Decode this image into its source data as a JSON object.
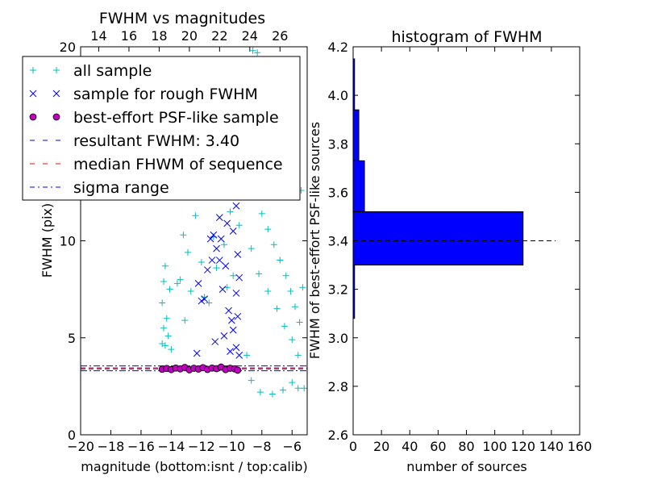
{
  "chart_data": [
    {
      "type": "scatter",
      "title": "FWHM vs magnitudes",
      "xlabel": "magnitude (bottom:isnt / top:calib)",
      "ylabel": "FWHM (pix)",
      "xlim": [
        -20,
        -5
      ],
      "ylim": [
        0,
        20
      ],
      "xticks": [
        "−20",
        "−18",
        "−16",
        "−14",
        "−12",
        "−10",
        "−8",
        "−6"
      ],
      "xtick_values": [
        -20,
        -18,
        -16,
        -14,
        -12,
        -10,
        -8,
        -6
      ],
      "yticks": [
        "0",
        "5",
        "10",
        "20"
      ],
      "ytick_values": [
        0,
        5,
        10,
        20
      ],
      "top_xticks": [
        "14",
        "16",
        "18",
        "20",
        "22",
        "24",
        "26"
      ],
      "top_xtick_values": [
        -18.8,
        -16.8,
        -14.8,
        -12.8,
        -10.8,
        -8.8,
        -6.8
      ],
      "legend": {
        "placement": "upper-left",
        "entries": [
          {
            "label": "all sample",
            "marker": "+",
            "color": "#00bfbf"
          },
          {
            "label": "sample for rough FWHM",
            "marker": "x",
            "color": "#0000ff"
          },
          {
            "label": "best-effort PSF-like sample",
            "marker": "o",
            "color": "#bf00bf"
          },
          {
            "label": "resultant FWHM: 3.40",
            "style": "dashed",
            "color": "#0000ff"
          },
          {
            "label": "median FHWM of sequence",
            "style": "dashed",
            "color": "#ff0000"
          },
          {
            "label": "sigma range",
            "style": "dashdot",
            "color": "#0000ff"
          }
        ]
      },
      "series": [
        {
          "name": "all sample",
          "color": "#00bfbf",
          "points": [
            [
              -14.4,
              8.7
            ],
            [
              -14.5,
              7.9
            ],
            [
              -14.1,
              7.5
            ],
            [
              -14.6,
              6.8
            ],
            [
              -14.3,
              6.0
            ],
            [
              -14.5,
              5.5
            ],
            [
              -14.2,
              5.1
            ],
            [
              -14.6,
              4.7
            ],
            [
              -14.4,
              4.6
            ],
            [
              -14.0,
              4.4
            ],
            [
              -13.6,
              7.8
            ],
            [
              -13.2,
              10.3
            ],
            [
              -13.4,
              8.0
            ],
            [
              -12.9,
              9.4
            ],
            [
              -12.7,
              7.4
            ],
            [
              -13.1,
              5.9
            ],
            [
              -12.4,
              11.3
            ],
            [
              -12.0,
              8.9
            ],
            [
              -11.8,
              7.1
            ],
            [
              -11.5,
              6.8
            ],
            [
              -11.2,
              10.2
            ],
            [
              -11.0,
              8.6
            ],
            [
              -10.7,
              12.4
            ],
            [
              -10.5,
              9.8
            ],
            [
              -10.3,
              7.6
            ],
            [
              -10.1,
              11.5
            ],
            [
              -9.9,
              8.2
            ],
            [
              -9.7,
              13.2
            ],
            [
              -9.5,
              10.8
            ],
            [
              -9.2,
              14.2
            ],
            [
              -8.9,
              15.6
            ],
            [
              -8.6,
              19.8
            ],
            [
              -8.3,
              19.7
            ],
            [
              -7.9,
              19.0
            ],
            [
              -7.4,
              18.6
            ],
            [
              -6.8,
              16.2
            ],
            [
              -6.2,
              15.5
            ],
            [
              -5.7,
              14.8
            ],
            [
              -5.4,
              12.6
            ],
            [
              -5.3,
              7.6
            ],
            [
              -5.2,
              2.4
            ],
            [
              -5.6,
              2.4
            ],
            [
              -6.0,
              2.7
            ],
            [
              -6.6,
              2.3
            ],
            [
              -7.3,
              2.1
            ],
            [
              -8.1,
              2.2
            ],
            [
              -8.7,
              2.8
            ],
            [
              -9.0,
              4.1
            ],
            [
              -8.4,
              12.5
            ],
            [
              -8.0,
              11.4
            ],
            [
              -7.6,
              10.6
            ],
            [
              -7.2,
              9.8
            ],
            [
              -6.8,
              9.0
            ],
            [
              -6.4,
              8.2
            ],
            [
              -6.1,
              7.4
            ],
            [
              -5.8,
              6.6
            ],
            [
              -5.5,
              5.8
            ],
            [
              -8.7,
              9.6
            ],
            [
              -8.2,
              8.3
            ],
            [
              -7.6,
              7.4
            ],
            [
              -7.0,
              6.5
            ],
            [
              -6.5,
              5.6
            ],
            [
              -6.0,
              4.9
            ],
            [
              -5.6,
              4.1
            ]
          ]
        },
        {
          "name": "sample for rough FWHM",
          "color": "#0000ff",
          "points": [
            [
              -12.3,
              4.2
            ],
            [
              -12.2,
              7.8
            ],
            [
              -12.0,
              6.9
            ],
            [
              -11.8,
              7.0
            ],
            [
              -11.6,
              8.5
            ],
            [
              -11.4,
              10.1
            ],
            [
              -11.2,
              10.3
            ],
            [
              -11.0,
              9.6
            ],
            [
              -10.8,
              9.0
            ],
            [
              -10.6,
              7.5
            ],
            [
              -10.4,
              8.7
            ],
            [
              -10.2,
              6.4
            ],
            [
              -10.0,
              5.9
            ],
            [
              -9.9,
              10.5
            ],
            [
              -9.8,
              12.6
            ],
            [
              -9.7,
              11.8
            ],
            [
              -9.6,
              9.3
            ],
            [
              -9.5,
              8.1
            ],
            [
              -10.8,
              11.2
            ],
            [
              -11.0,
              12.8
            ],
            [
              -10.6,
              14.4
            ],
            [
              -10.4,
              13.5
            ],
            [
              -10.2,
              15.6
            ],
            [
              -10.0,
              16.8
            ],
            [
              -9.8,
              15.1
            ],
            [
              -9.6,
              17.4
            ],
            [
              -9.5,
              13.9
            ],
            [
              -10.3,
              10.9
            ],
            [
              -10.7,
              10.1
            ],
            [
              -11.3,
              9.0
            ],
            [
              -9.7,
              7.3
            ],
            [
              -9.6,
              6.1
            ],
            [
              -9.9,
              5.4
            ],
            [
              -10.5,
              5.1
            ],
            [
              -11.1,
              4.8
            ],
            [
              -9.7,
              4.5
            ],
            [
              -9.5,
              4.1
            ],
            [
              -10.1,
              4.3
            ]
          ]
        },
        {
          "name": "best-effort PSF-like sample",
          "color": "#bf00bf",
          "points": [
            [
              -14.6,
              3.38
            ],
            [
              -14.3,
              3.42
            ],
            [
              -14.0,
              3.36
            ],
            [
              -13.7,
              3.44
            ],
            [
              -13.4,
              3.4
            ],
            [
              -13.1,
              3.47
            ],
            [
              -12.8,
              3.35
            ],
            [
              -12.5,
              3.43
            ],
            [
              -12.2,
              3.39
            ],
            [
              -11.9,
              3.46
            ],
            [
              -11.6,
              3.37
            ],
            [
              -11.3,
              3.44
            ],
            [
              -11.0,
              3.41
            ],
            [
              -10.7,
              3.49
            ],
            [
              -10.4,
              3.36
            ],
            [
              -10.1,
              3.43
            ],
            [
              -9.8,
              3.4
            ],
            [
              -9.6,
              3.33
            ]
          ]
        }
      ],
      "lines": [
        {
          "name": "resultant FWHM: 3.40",
          "y": 3.4,
          "color": "#0000ff",
          "style": "dashed"
        },
        {
          "name": "median FHWM of sequence",
          "y": 3.45,
          "color": "#ff0000",
          "style": "dashed"
        },
        {
          "name": "sigma range",
          "y": 3.55,
          "color": "#0000ff",
          "style": "dashdot"
        },
        {
          "name": "sigma range",
          "y": 3.3,
          "color": "#0000ff",
          "style": "dashdot"
        }
      ]
    },
    {
      "type": "bar",
      "orientation": "horizontal",
      "title": "histogram of FWHM",
      "xlabel": "number of sources",
      "ylabel": "FWHM of best-effort PSF-like sources",
      "xlim": [
        0,
        160
      ],
      "ylim": [
        2.6,
        4.2
      ],
      "xticks": [
        "0",
        "20",
        "40",
        "60",
        "80",
        "100",
        "120",
        "140",
        "160"
      ],
      "xtick_values": [
        0,
        20,
        40,
        60,
        80,
        100,
        120,
        140,
        160
      ],
      "yticks": [
        "2.6",
        "2.8",
        "3.0",
        "3.2",
        "3.4",
        "3.6",
        "3.8",
        "4.0",
        "4.2"
      ],
      "ytick_values": [
        2.6,
        2.8,
        3.0,
        3.2,
        3.4,
        3.6,
        3.8,
        4.0,
        4.2
      ],
      "bin_edges": [
        3.08,
        3.3,
        3.52,
        3.73,
        3.94,
        4.15
      ],
      "counts": [
        1,
        120,
        8,
        4,
        1
      ],
      "color": "#0000ff",
      "reference_line": {
        "y": 3.4,
        "x_range": [
          0,
          143
        ],
        "style": "dashed",
        "color": "#000000"
      }
    }
  ]
}
